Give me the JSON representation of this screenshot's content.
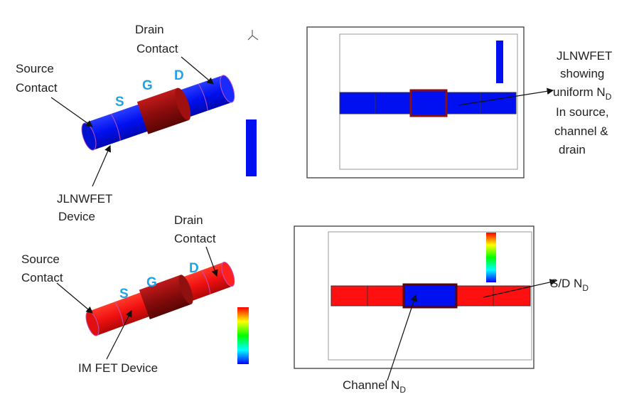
{
  "top": {
    "drain": [
      "Drain",
      "Contact"
    ],
    "source": [
      "Source",
      "Contact"
    ],
    "s": "S",
    "g": "G",
    "d": "D",
    "device": [
      "JLNWFET",
      "Device"
    ],
    "note": {
      "line1": "JLNWFET",
      "line2": "showing",
      "line3": {
        "text": "uniform N",
        "sub": "D"
      },
      "line4": "In source,",
      "line5": "channel &",
      "line6": "drain"
    }
  },
  "bottom": {
    "drain": [
      "Drain",
      "Contact"
    ],
    "source": [
      "Source",
      "Contact"
    ],
    "s": "S",
    "g": "G",
    "d": "D",
    "device": "IM FET Device",
    "sd": {
      "text": "S/D N",
      "sub": "D"
    },
    "channel": {
      "text": "Channel N",
      "sub": "D"
    }
  }
}
